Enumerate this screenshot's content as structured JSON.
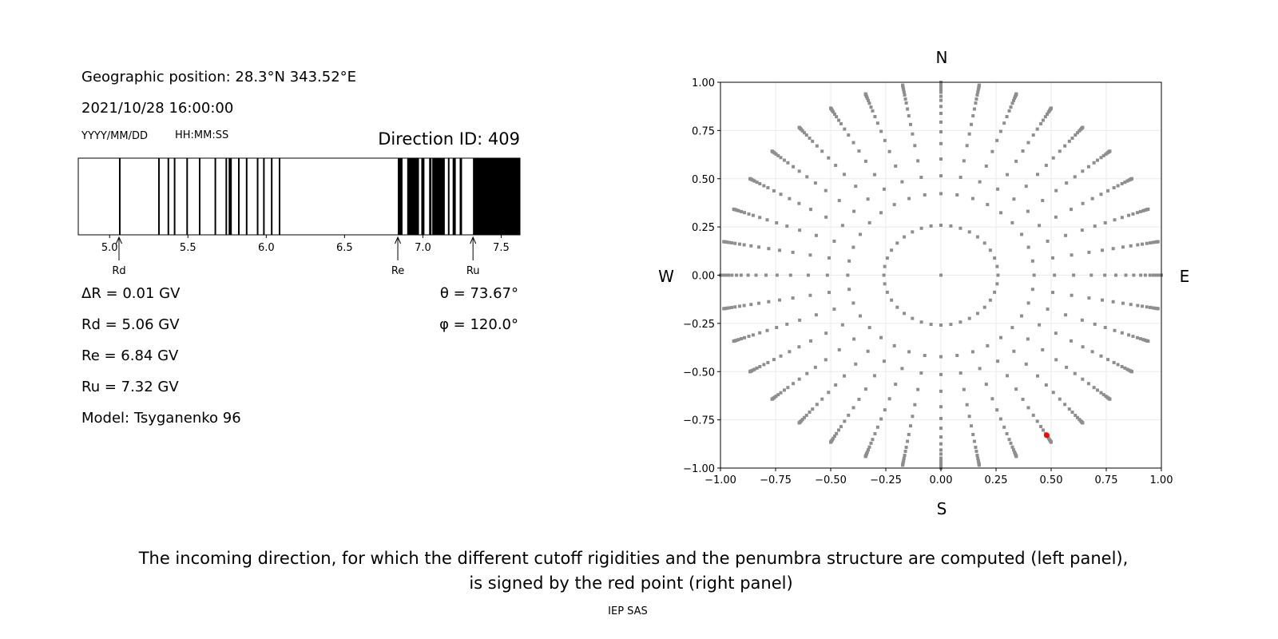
{
  "left_panel": {
    "geo_position": "Geographic position: 28.3°N 343.52°E",
    "datetime": "2021/10/28 16:00:00",
    "date_format": "YYYY/MM/DD",
    "time_format": "HH:MM:SS",
    "direction_id": "Direction ID: 409",
    "delta_r": "ΔR = 0.01 GV",
    "rd": "Rd = 5.06 GV",
    "re": "Re = 6.84 GV",
    "ru": "Ru = 7.32 GV",
    "model": "Model: Tsyganenko 96",
    "theta": "θ = 73.67°",
    "phi": "φ = 120.0°"
  },
  "caption": {
    "line1": "The incoming direction, for which the different cutoff rigidities and the penumbra structure are computed (left panel),",
    "line2": "is signed by the red point (right panel)",
    "credit": "IEP SAS"
  },
  "chart_data": [
    {
      "type": "bar",
      "xlim": [
        4.8,
        7.62
      ],
      "xticks": [
        "5.0",
        "5.5",
        "6.0",
        "6.5",
        "7.0",
        "7.5"
      ],
      "xtick_values": [
        5.0,
        5.5,
        6.0,
        6.5,
        7.0,
        7.5
      ],
      "allowed_bands": [
        [
          5.06,
          5.07
        ],
        [
          5.31,
          5.32
        ],
        [
          5.37,
          5.38
        ],
        [
          5.41,
          5.42
        ],
        [
          5.49,
          5.5
        ],
        [
          5.57,
          5.58
        ],
        [
          5.67,
          5.68
        ],
        [
          5.74,
          5.75
        ],
        [
          5.76,
          5.78
        ],
        [
          5.82,
          5.83
        ],
        [
          5.87,
          5.88
        ],
        [
          5.94,
          5.95
        ],
        [
          5.98,
          5.99
        ],
        [
          6.03,
          6.04
        ],
        [
          6.08,
          6.09
        ],
        [
          6.84,
          6.87
        ],
        [
          6.9,
          6.975
        ],
        [
          6.99,
          7.01
        ],
        [
          7.04,
          7.055
        ],
        [
          7.06,
          7.14
        ],
        [
          7.16,
          7.17
        ],
        [
          7.19,
          7.21
        ],
        [
          7.235,
          7.25
        ],
        [
          7.32,
          7.62
        ]
      ],
      "band_color": "#000000",
      "markers": [
        {
          "label": "Rd",
          "value": 5.06
        },
        {
          "label": "Re",
          "value": 6.84
        },
        {
          "label": "Ru",
          "value": 7.32
        }
      ]
    },
    {
      "type": "scatter",
      "xlim": [
        -1,
        1
      ],
      "ylim": [
        -1,
        1
      ],
      "grid": true,
      "xticks": [
        "−1.00",
        "−0.75",
        "−0.50",
        "−0.25",
        "0.00",
        "0.25",
        "0.50",
        "0.75",
        "1.00"
      ],
      "yticks": [
        "−1.00",
        "−0.75",
        "−0.50",
        "−0.25",
        "0.00",
        "0.25",
        "0.50",
        "0.75",
        "1.00"
      ],
      "tick_values": [
        -1,
        -0.75,
        -0.5,
        -0.25,
        0,
        0.25,
        0.5,
        0.75,
        1
      ],
      "compass": {
        "north": "N",
        "south": "S",
        "west": "W",
        "east": "E"
      },
      "grid_azimuth_step_deg": 10,
      "grid_zenith_deg": [
        0,
        15,
        25,
        31,
        37,
        43,
        48,
        52.5,
        57,
        61,
        65,
        68,
        71.5,
        74.5,
        77.5,
        80,
        82.5,
        85,
        87.5,
        90
      ],
      "grid_point_color": "#8e8e8e",
      "selected_point": {
        "x": 0.48,
        "y": -0.83,
        "color": "#ff0000"
      }
    }
  ]
}
